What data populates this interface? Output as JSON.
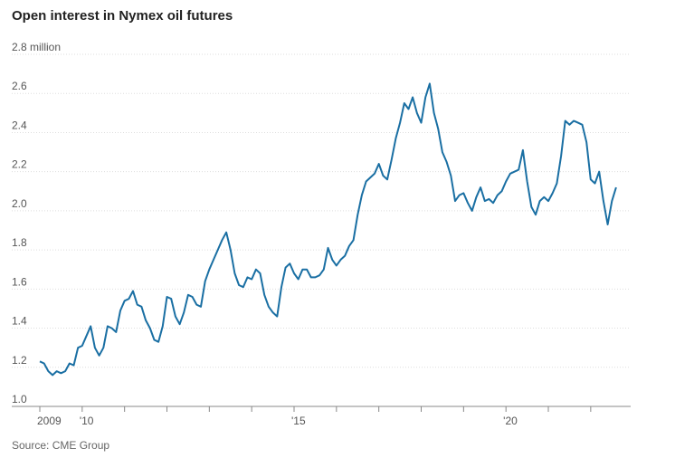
{
  "chart_data": {
    "type": "line",
    "title": "Open interest in Nymex oil futures",
    "source": "Source: CME Group",
    "ylim": [
      1.0,
      2.8
    ],
    "y_ticks": [
      {
        "value": 2.8,
        "label": "2.8 million"
      },
      {
        "value": 2.6,
        "label": "2.6"
      },
      {
        "value": 2.4,
        "label": "2.4"
      },
      {
        "value": 2.2,
        "label": "2.2"
      },
      {
        "value": 2.0,
        "label": "2.0"
      },
      {
        "value": 1.8,
        "label": "1.8"
      },
      {
        "value": 1.6,
        "label": "1.6"
      },
      {
        "value": 1.4,
        "label": "1.4"
      },
      {
        "value": 1.2,
        "label": "1.2"
      },
      {
        "value": 1.0,
        "label": "1.0"
      }
    ],
    "xlim": [
      2009.0,
      2022.9
    ],
    "x_ticks": [
      {
        "value": 2009,
        "label": "2009"
      },
      {
        "value": 2010,
        "label": "'10"
      },
      {
        "value": 2011,
        "label": ""
      },
      {
        "value": 2012,
        "label": ""
      },
      {
        "value": 2013,
        "label": ""
      },
      {
        "value": 2014,
        "label": ""
      },
      {
        "value": 2015,
        "label": "'15"
      },
      {
        "value": 2016,
        "label": ""
      },
      {
        "value": 2017,
        "label": ""
      },
      {
        "value": 2018,
        "label": ""
      },
      {
        "value": 2019,
        "label": ""
      },
      {
        "value": 2020,
        "label": "'20"
      },
      {
        "value": 2021,
        "label": ""
      },
      {
        "value": 2022,
        "label": ""
      }
    ],
    "grid": true,
    "line_color": "#1f77b4",
    "series": [
      {
        "name": "",
        "x": [
          2009.0,
          2009.1,
          2009.2,
          2009.3,
          2009.4,
          2009.5,
          2009.6,
          2009.7,
          2009.8,
          2009.9,
          2010.0,
          2010.1,
          2010.2,
          2010.3,
          2010.4,
          2010.5,
          2010.6,
          2010.7,
          2010.8,
          2010.9,
          2011.0,
          2011.1,
          2011.2,
          2011.3,
          2011.4,
          2011.5,
          2011.6,
          2011.7,
          2011.8,
          2011.9,
          2012.0,
          2012.1,
          2012.2,
          2012.3,
          2012.4,
          2012.5,
          2012.6,
          2012.7,
          2012.8,
          2012.9,
          2013.0,
          2013.1,
          2013.2,
          2013.3,
          2013.4,
          2013.5,
          2013.6,
          2013.7,
          2013.8,
          2013.9,
          2014.0,
          2014.1,
          2014.2,
          2014.3,
          2014.4,
          2014.5,
          2014.6,
          2014.7,
          2014.8,
          2014.9,
          2015.0,
          2015.1,
          2015.2,
          2015.3,
          2015.4,
          2015.5,
          2015.6,
          2015.7,
          2015.8,
          2015.9,
          2016.0,
          2016.1,
          2016.2,
          2016.3,
          2016.4,
          2016.5,
          2016.6,
          2016.7,
          2016.8,
          2016.9,
          2017.0,
          2017.1,
          2017.2,
          2017.3,
          2017.4,
          2017.5,
          2017.6,
          2017.7,
          2017.8,
          2017.9,
          2018.0,
          2018.1,
          2018.2,
          2018.3,
          2018.4,
          2018.5,
          2018.6,
          2018.7,
          2018.8,
          2018.9,
          2019.0,
          2019.1,
          2019.2,
          2019.3,
          2019.4,
          2019.5,
          2019.6,
          2019.7,
          2019.8,
          2019.9,
          2020.0,
          2020.1,
          2020.2,
          2020.3,
          2020.4,
          2020.5,
          2020.6,
          2020.7,
          2020.8,
          2020.9,
          2021.0,
          2021.1,
          2021.2,
          2021.3,
          2021.4,
          2021.5,
          2021.6,
          2021.7,
          2021.8,
          2021.9,
          2022.0,
          2022.1,
          2022.2,
          2022.3,
          2022.4,
          2022.5,
          2022.6
        ],
        "y": [
          1.23,
          1.22,
          1.18,
          1.16,
          1.18,
          1.17,
          1.18,
          1.22,
          1.21,
          1.3,
          1.31,
          1.36,
          1.41,
          1.3,
          1.26,
          1.3,
          1.41,
          1.4,
          1.38,
          1.49,
          1.54,
          1.55,
          1.59,
          1.52,
          1.51,
          1.44,
          1.4,
          1.34,
          1.33,
          1.41,
          1.56,
          1.55,
          1.46,
          1.42,
          1.48,
          1.57,
          1.56,
          1.52,
          1.51,
          1.64,
          1.7,
          1.75,
          1.8,
          1.85,
          1.89,
          1.8,
          1.68,
          1.62,
          1.61,
          1.66,
          1.65,
          1.7,
          1.68,
          1.57,
          1.51,
          1.48,
          1.46,
          1.61,
          1.71,
          1.73,
          1.68,
          1.65,
          1.7,
          1.7,
          1.66,
          1.66,
          1.67,
          1.7,
          1.81,
          1.75,
          1.72,
          1.75,
          1.77,
          1.82,
          1.85,
          1.98,
          2.08,
          2.15,
          2.17,
          2.19,
          2.24,
          2.18,
          2.16,
          2.26,
          2.37,
          2.45,
          2.55,
          2.52,
          2.58,
          2.5,
          2.45,
          2.58,
          2.65,
          2.5,
          2.42,
          2.3,
          2.25,
          2.18,
          2.05,
          2.08,
          2.09,
          2.04,
          2.0,
          2.07,
          2.12,
          2.05,
          2.06,
          2.04,
          2.08,
          2.1,
          2.15,
          2.19,
          2.2,
          2.21,
          2.31,
          2.15,
          2.02,
          1.98,
          2.05,
          2.07,
          2.05,
          2.09,
          2.14,
          2.28,
          2.46,
          2.44,
          2.46,
          2.45,
          2.44,
          2.35,
          2.16,
          2.14,
          2.2,
          2.05,
          1.93,
          2.05,
          2.12
        ]
      }
    ]
  }
}
